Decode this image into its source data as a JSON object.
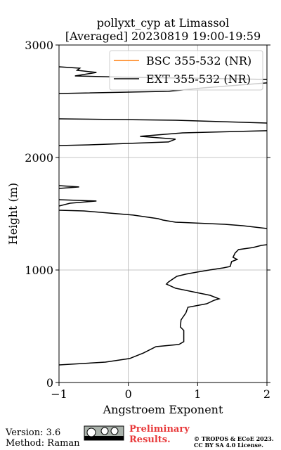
{
  "chart_data": {
    "type": "line",
    "title": "pollyxt_cyp at Limassol",
    "subtitle": "[Averaged] 20230819 19:00-19:59",
    "xlabel": "Angstroem Exponent",
    "ylabel": "Height (m)",
    "xlim": [
      -1,
      2
    ],
    "ylim": [
      0,
      3000
    ],
    "xticks": [
      {
        "value": -1,
        "label": "−1"
      },
      0,
      1,
      2
    ],
    "yticks": [
      0,
      1000,
      2000,
      3000
    ],
    "grid": true,
    "legend": "upper right",
    "series": [
      {
        "name": "BSC 355-532 (NR)",
        "color": "#ff7f0e",
        "y": [],
        "values": []
      },
      {
        "name": "EXT 355-532 (NR)",
        "color": "#000000",
        "y": [
          156,
          181,
          213,
          263,
          319,
          338,
          363,
          463,
          494,
          556,
          619,
          669,
          700,
          731,
          744,
          775,
          800,
          838,
          875,
          894,
          944,
          963,
          981,
          1000,
          1019,
          1031,
          1075,
          1094,
          1113,
          1150,
          1181,
          1200,
          1219,
          1225,
          null,
          1369,
          1394,
          1406,
          1425,
          1444,
          1456,
          1488,
          1525,
          1531,
          null,
          1569,
          1594,
          1613,
          1625,
          null,
          1725,
          1738,
          1750,
          null,
          2106,
          2113,
          2138,
          2163,
          2188,
          2219,
          2238,
          null,
          2306,
          2331,
          2344,
          null,
          2569,
          2588,
          2619,
          2663,
          null,
          2694,
          2700,
          2713,
          2725,
          2756,
          2775,
          2794,
          2806
        ],
        "values": [
          -1.0,
          -0.33,
          0.02,
          0.22,
          0.4,
          0.73,
          0.8,
          0.8,
          0.75,
          0.76,
          0.83,
          0.86,
          1.13,
          1.24,
          1.31,
          1.18,
          0.98,
          0.68,
          0.55,
          0.58,
          0.7,
          0.83,
          0.99,
          1.17,
          1.37,
          1.47,
          1.49,
          1.57,
          1.51,
          1.54,
          1.59,
          1.8,
          1.92,
          2.0,
          null,
          2.0,
          1.65,
          1.39,
          0.68,
          0.5,
          0.43,
          0.07,
          -0.64,
          -1.0,
          null,
          -1.0,
          -0.84,
          -0.46,
          -1.0,
          null,
          -1.0,
          -0.71,
          -1.0,
          null,
          -1.0,
          -0.53,
          0.58,
          0.68,
          0.17,
          0.78,
          2.0,
          null,
          2.0,
          0.68,
          -1.0,
          null,
          -1.0,
          0.58,
          1.08,
          2.0,
          null,
          2.0,
          1.49,
          -0.03,
          -0.77,
          -0.46,
          -0.74,
          -0.7,
          -1.0
        ]
      }
    ]
  },
  "footer": {
    "version": "Version: 3.6",
    "method": "Method: Raman",
    "notice": "Preliminary Results.",
    "copyright": "© TROPOS & ECoE 2023.",
    "license": "CC BY SA 4.0 License."
  }
}
